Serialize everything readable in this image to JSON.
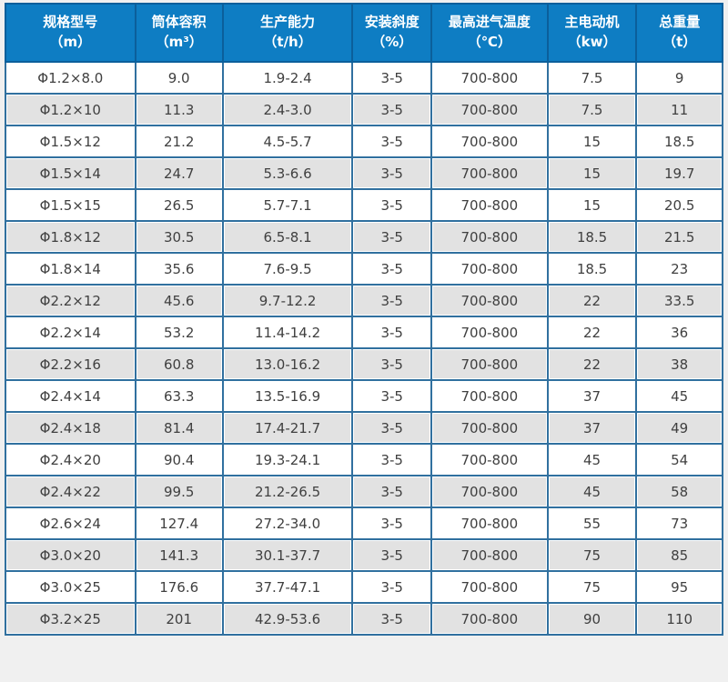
{
  "colors": {
    "header_bg": "#0e7dc3",
    "header_border": "#0b5f9b",
    "grid_border": "#30709f",
    "row_alt_bg": "#e2e2e2",
    "row_bg": "#ffffff",
    "body_text": "#404040",
    "header_text": "#ffffff",
    "page_bg": "#f0f0f0"
  },
  "table": {
    "columns": [
      {
        "title": "规格型号",
        "unit": "（m）",
        "width": "18.1%"
      },
      {
        "title": "筒体容积",
        "unit": "（m³）",
        "width": "12.2%"
      },
      {
        "title": "生产能力",
        "unit": "（t/h）",
        "width": "18.1%"
      },
      {
        "title": "安装斜度",
        "unit": "（%）",
        "width": "11.0%"
      },
      {
        "title": "最高进气温度",
        "unit": "（℃）",
        "width": "16.2%"
      },
      {
        "title": "主电动机",
        "unit": "（kw）",
        "width": "12.4%"
      },
      {
        "title": "总重量",
        "unit": "（t）",
        "width": "12.0%"
      }
    ],
    "rows": [
      [
        "Φ1.2×8.0",
        "9.0",
        "1.9-2.4",
        "3-5",
        "700-800",
        "7.5",
        "9"
      ],
      [
        "Φ1.2×10",
        "11.3",
        "2.4-3.0",
        "3-5",
        "700-800",
        "7.5",
        "11"
      ],
      [
        "Φ1.5×12",
        "21.2",
        "4.5-5.7",
        "3-5",
        "700-800",
        "15",
        "18.5"
      ],
      [
        "Φ1.5×14",
        "24.7",
        "5.3-6.6",
        "3-5",
        "700-800",
        "15",
        "19.7"
      ],
      [
        "Φ1.5×15",
        "26.5",
        "5.7-7.1",
        "3-5",
        "700-800",
        "15",
        "20.5"
      ],
      [
        "Φ1.8×12",
        "30.5",
        "6.5-8.1",
        "3-5",
        "700-800",
        "18.5",
        "21.5"
      ],
      [
        "Φ1.8×14",
        "35.6",
        "7.6-9.5",
        "3-5",
        "700-800",
        "18.5",
        "23"
      ],
      [
        "Φ2.2×12",
        "45.6",
        "9.7-12.2",
        "3-5",
        "700-800",
        "22",
        "33.5"
      ],
      [
        "Φ2.2×14",
        "53.2",
        "11.4-14.2",
        "3-5",
        "700-800",
        "22",
        "36"
      ],
      [
        "Φ2.2×16",
        "60.8",
        "13.0-16.2",
        "3-5",
        "700-800",
        "22",
        "38"
      ],
      [
        "Φ2.4×14",
        "63.3",
        "13.5-16.9",
        "3-5",
        "700-800",
        "37",
        "45"
      ],
      [
        "Φ2.4×18",
        "81.4",
        "17.4-21.7",
        "3-5",
        "700-800",
        "37",
        "49"
      ],
      [
        "Φ2.4×20",
        "90.4",
        "19.3-24.1",
        "3-5",
        "700-800",
        "45",
        "54"
      ],
      [
        "Φ2.4×22",
        "99.5",
        "21.2-26.5",
        "3-5",
        "700-800",
        "45",
        "58"
      ],
      [
        "Φ2.6×24",
        "127.4",
        "27.2-34.0",
        "3-5",
        "700-800",
        "55",
        "73"
      ],
      [
        "Φ3.0×20",
        "141.3",
        "30.1-37.7",
        "3-5",
        "700-800",
        "75",
        "85"
      ],
      [
        "Φ3.0×25",
        "176.6",
        "37.7-47.1",
        "3-5",
        "700-800",
        "75",
        "95"
      ],
      [
        "Φ3.2×25",
        "201",
        "42.9-53.6",
        "3-5",
        "700-800",
        "90",
        "110"
      ]
    ]
  }
}
